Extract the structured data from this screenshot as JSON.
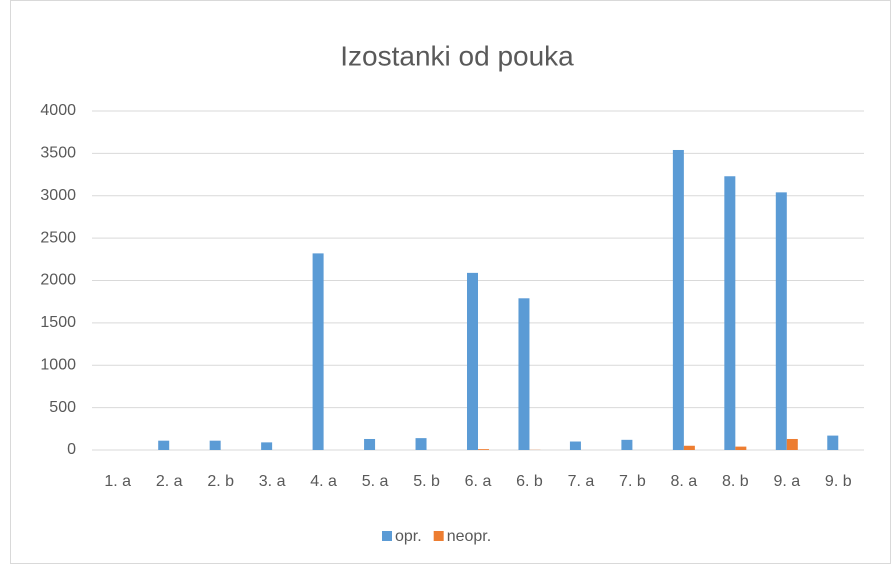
{
  "chart_data": {
    "type": "bar",
    "title": "Izostanki od pouka",
    "categories": [
      "1. a",
      "2. a",
      "2. b",
      "3. a",
      "4. a",
      "5. a",
      "5. b",
      "6. a",
      "6. b",
      "7. a",
      "7. b",
      "8. a",
      "8. b",
      "9. a",
      "9. b"
    ],
    "series": [
      {
        "name": "opr.",
        "color": "#5b9bd5",
        "values": [
          0,
          110,
          110,
          90,
          2320,
          130,
          140,
          2090,
          1790,
          100,
          120,
          3540,
          3230,
          3040,
          170
        ]
      },
      {
        "name": "neopr.",
        "color": "#ed7d31",
        "values": [
          0,
          0,
          0,
          0,
          0,
          0,
          0,
          10,
          2,
          0,
          0,
          50,
          40,
          130,
          0
        ]
      }
    ],
    "ylim": [
      0,
      4000
    ],
    "yticks": [
      0,
      500,
      1000,
      1500,
      2000,
      2500,
      3000,
      3500,
      4000
    ],
    "grid": true,
    "legend": "bottom"
  }
}
